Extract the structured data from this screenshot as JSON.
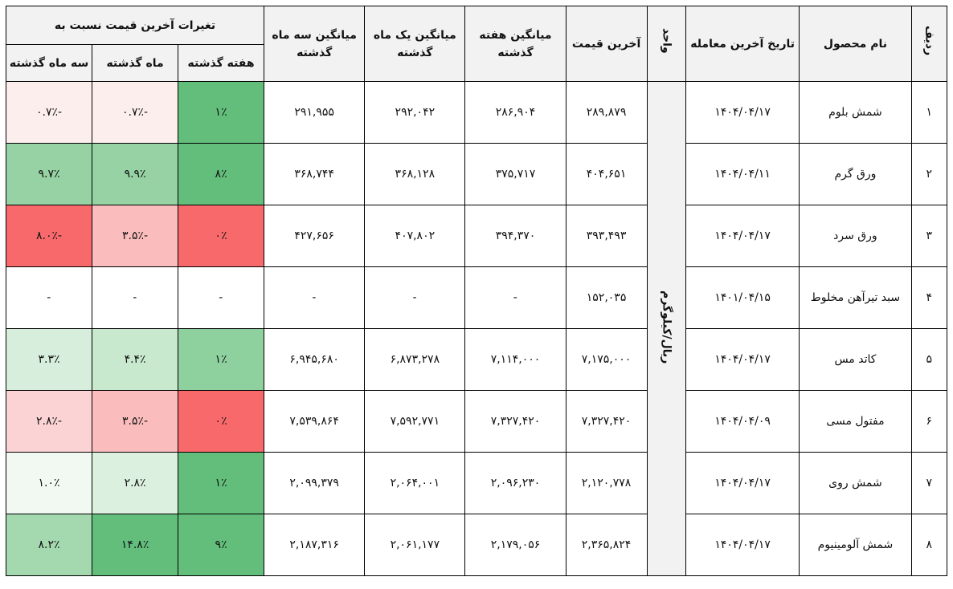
{
  "headers": {
    "radif": "ردیف",
    "product": "نام محصول",
    "last_date": "تاریخ آخرین معامله",
    "unit": "واحد",
    "last_price": "آخرین قیمت",
    "avg_week": "میانگین هفته گذشته",
    "avg_month": "میانگین یک ماه گذشته",
    "avg_3month": "میانگین سه ماه گذشته",
    "changes_group": "تغیرات آخرین قیمت نسبت به",
    "chg_week": "هفته گذشته",
    "chg_month": "ماه گذشته",
    "chg_3month": "سه ماه گذشته"
  },
  "unit_value": "ریال/کیلوگرم",
  "colors": {
    "header_bg": "#f2f2f2",
    "green_strong": "#63be7b",
    "green_mid": "#8fd19e",
    "green_light": "#c6e7cc",
    "green_pale": "#e6f4e8",
    "red_strong": "#f8696b",
    "red_mid": "#fbbabb",
    "red_pale": "#fde7e8"
  },
  "rows": [
    {
      "radif": "۱",
      "product": "شمش بلوم",
      "date": "۱۴۰۴/۰۴/۱۷",
      "last": "۲۸۹,۸۷۹",
      "avg_w": "۲۸۶,۹۰۴",
      "avg_m": "۲۹۲,۰۴۲",
      "avg_3m": "۲۹۱,۹۵۵",
      "chg_w": "۱٪",
      "chg_m": "-۰.۷٪",
      "chg_3m": "-۰.۷٪",
      "bg_w": "#63be7b",
      "bg_m": "#fdeeee",
      "bg_3m": "#fdeeee"
    },
    {
      "radif": "۲",
      "product": "ورق گرم",
      "date": "۱۴۰۴/۰۴/۱۱",
      "last": "۴۰۴,۶۵۱",
      "avg_w": "۳۷۵,۷۱۷",
      "avg_m": "۳۶۸,۱۲۸",
      "avg_3m": "۳۶۸,۷۴۴",
      "chg_w": "۸٪",
      "chg_m": "۹.۹٪",
      "chg_3m": "۹.۷٪",
      "bg_w": "#63be7b",
      "bg_m": "#96d2a3",
      "bg_3m": "#96d2a3"
    },
    {
      "radif": "۳",
      "product": "ورق سرد",
      "date": "۱۴۰۴/۰۴/۱۷",
      "last": "۳۹۳,۴۹۳",
      "avg_w": "۳۹۴,۳۷۰",
      "avg_m": "۴۰۷,۸۰۲",
      "avg_3m": "۴۲۷,۶۵۶",
      "chg_w": "۰٪",
      "chg_m": "-۳.۵٪",
      "chg_3m": "-۸.۰٪",
      "bg_w": "#f8696b",
      "bg_m": "#fbbcbd",
      "bg_3m": "#f8696b"
    },
    {
      "radif": "۴",
      "product": "سبد تیرآهن مخلوط",
      "date": "۱۴۰۱/۰۴/۱۵",
      "last": "۱۵۲,۰۳۵",
      "avg_w": "-",
      "avg_m": "-",
      "avg_3m": "-",
      "chg_w": "-",
      "chg_m": "-",
      "chg_3m": "-",
      "bg_w": "#ffffff",
      "bg_m": "#ffffff",
      "bg_3m": "#ffffff"
    },
    {
      "radif": "۵",
      "product": "کاتد مس",
      "date": "۱۴۰۴/۰۴/۱۷",
      "last": "۷,۱۷۵,۰۰۰",
      "avg_w": "۷,۱۱۴,۰۰۰",
      "avg_m": "۶,۸۷۳,۲۷۸",
      "avg_3m": "۶,۹۴۵,۶۸۰",
      "chg_w": "۱٪",
      "chg_m": "۴.۴٪",
      "chg_3m": "۳.۳٪",
      "bg_w": "#8fd19e",
      "bg_m": "#c9e9cf",
      "bg_3m": "#d6eedb"
    },
    {
      "radif": "۶",
      "product": "مفتول مسی",
      "date": "۱۴۰۴/۰۴/۰۹",
      "last": "۷,۳۲۷,۴۲۰",
      "avg_w": "۷,۳۲۷,۴۲۰",
      "avg_m": "۷,۵۹۲,۷۷۱",
      "avg_3m": "۷,۵۳۹,۸۶۴",
      "chg_w": "۰٪",
      "chg_m": "-۳.۵٪",
      "chg_3m": "-۲.۸٪",
      "bg_w": "#f8696b",
      "bg_m": "#fbbcbd",
      "bg_3m": "#fcd3d4"
    },
    {
      "radif": "۷",
      "product": "شمش روی",
      "date": "۱۴۰۴/۰۴/۱۷",
      "last": "۲,۱۲۰,۷۷۸",
      "avg_w": "۲,۰۹۶,۲۳۰",
      "avg_m": "۲,۰۶۴,۰۰۱",
      "avg_3m": "۲,۰۹۹,۳۷۹",
      "chg_w": "۱٪",
      "chg_m": "۲.۸٪",
      "chg_3m": "۱.۰٪",
      "bg_w": "#63be7b",
      "bg_m": "#dcf0e0",
      "bg_3m": "#f1f9f2"
    },
    {
      "radif": "۸",
      "product": "شمش آلومینیوم",
      "date": "۱۴۰۴/۰۴/۱۷",
      "last": "۲,۳۶۵,۸۲۴",
      "avg_w": "۲,۱۷۹,۰۵۶",
      "avg_m": "۲,۰۶۱,۱۷۷",
      "avg_3m": "۲,۱۸۷,۳۱۶",
      "chg_w": "۹٪",
      "chg_m": "۱۴.۸٪",
      "chg_3m": "۸.۲٪",
      "bg_w": "#63be7b",
      "bg_m": "#63be7b",
      "bg_3m": "#a4d8af"
    }
  ]
}
